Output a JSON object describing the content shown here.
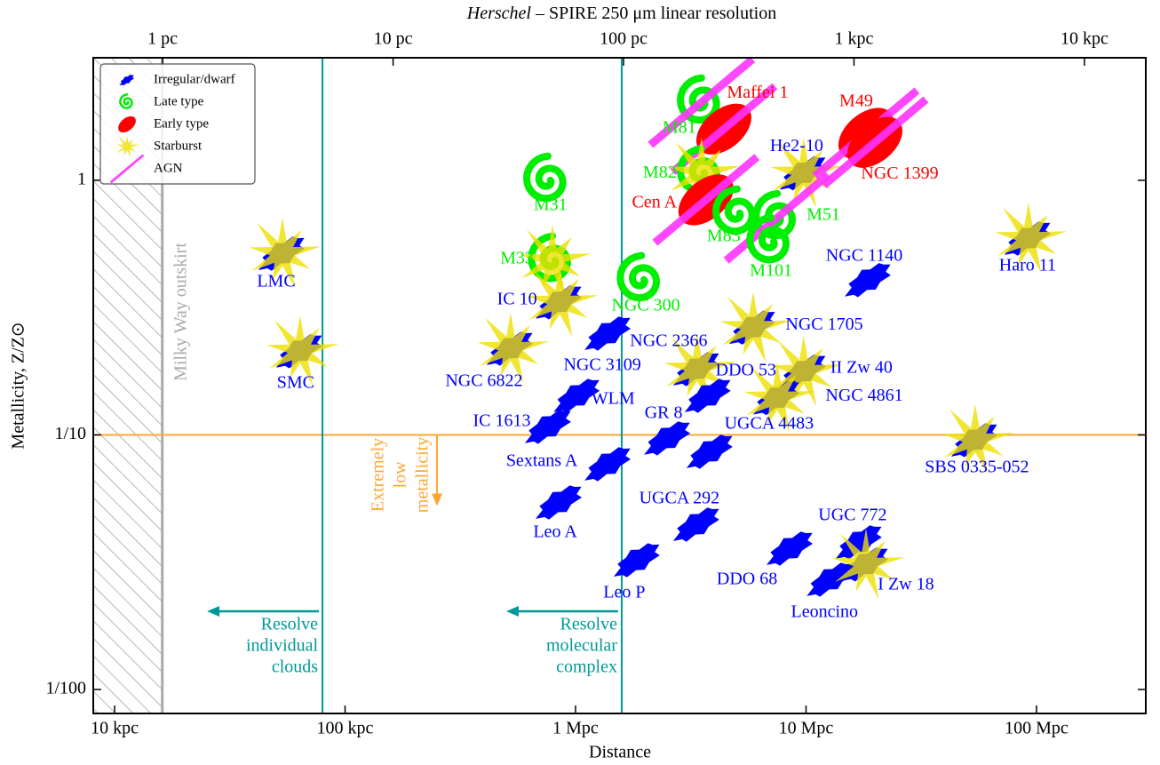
{
  "chart_data": {
    "type": "scatter",
    "x2label_emph": "Herschel",
    "x2label": " – SPIRE 250 μm linear resolution",
    "xlabel": "Distance",
    "ylabel": "Metallicity, Z/Z⊙",
    "log_x": true,
    "log_y": true,
    "xlim": [
      0.00808,
      298
    ],
    "xticks": [
      {
        "value": 0.01,
        "label": "10 kpc"
      },
      {
        "value": 0.1,
        "label": "100 kpc"
      },
      {
        "value": 1,
        "label": "1 Mpc"
      },
      {
        "value": 10,
        "label": "10 Mpc"
      },
      {
        "value": 100,
        "label": "100 Mpc"
      }
    ],
    "x2lim": [
      0.5,
      18460
    ],
    "x2ticks": [
      {
        "value": 1,
        "label": "1 pc"
      },
      {
        "value": 10,
        "label": "10 pc"
      },
      {
        "value": 100,
        "label": "100 pc"
      },
      {
        "value": 1000,
        "label": "1 kpc"
      },
      {
        "value": 10000,
        "label": "10 kpc"
      }
    ],
    "ylim": [
      0.00805,
      3.03
    ],
    "yticks": [
      {
        "value": 0.01,
        "label": "1/100"
      },
      {
        "value": 0.1,
        "label": "1/10"
      },
      1
    ],
    "legend_position": "upper left",
    "legend": [
      {
        "name": "Irregular/dwarf",
        "color": "#0000ff"
      },
      {
        "name": "Late type",
        "color": "#00ee00"
      },
      {
        "name": "Early type",
        "color": "#ff0000"
      },
      {
        "name": "Starburst",
        "color": "#eee000"
      },
      {
        "name": "AGN",
        "color": "#ff33ff"
      }
    ],
    "milky_way_edge": 0.0161,
    "milky_way_color": "#aaaaaa",
    "milky_way_text": "Milky Way outskirt",
    "low_metallicity": 0.1,
    "low_metallicity_color": "#ffa630",
    "low_metallicity_text": [
      "Extremely",
      "low",
      "metallicity"
    ],
    "resolution_color": "#009999",
    "resolution_limits": [
      {
        "x": 0.0798,
        "text": [
          "Resolve",
          "individual",
          "clouds"
        ]
      },
      {
        "x": 1.586,
        "text": [
          "Resolve",
          "molecular",
          "complex"
        ]
      }
    ],
    "points": [
      {
        "label": "LMC",
        "x": 0.0535,
        "y": 0.517,
        "types": [
          "Irregular/dwarf",
          "Starburst"
        ]
      },
      {
        "label": "SMC",
        "x": 0.0638,
        "y": 0.214,
        "types": [
          "Irregular/dwarf",
          "Starburst"
        ]
      },
      {
        "label": "M31",
        "x": 0.758,
        "y": 1.0,
        "types": [
          "Late type"
        ]
      },
      {
        "label": "M33",
        "x": 0.794,
        "y": 0.485,
        "types": [
          "Late type",
          "Starburst"
        ]
      },
      {
        "label": "IC 10",
        "x": 0.853,
        "y": 0.333,
        "types": [
          "Irregular/dwarf",
          "Starburst"
        ]
      },
      {
        "label": "NGC 6822",
        "x": 0.523,
        "y": 0.219,
        "types": [
          "Irregular/dwarf",
          "Starburst"
        ]
      },
      {
        "label": "NGC 300",
        "x": 1.93,
        "y": 0.407,
        "types": [
          "Late type"
        ]
      },
      {
        "label": "NGC 3109",
        "x": 1.39,
        "y": 0.251,
        "types": [
          "Irregular/dwarf"
        ]
      },
      {
        "label": "WLM",
        "x": 1.02,
        "y": 0.143,
        "types": [
          "Irregular/dwarf"
        ]
      },
      {
        "label": "IC 1613",
        "x": 0.766,
        "y": 0.108,
        "types": [
          "Irregular/dwarf"
        ]
      },
      {
        "label": "Sextans A",
        "x": 1.39,
        "y": 0.077,
        "types": [
          "Irregular/dwarf"
        ]
      },
      {
        "label": "Leo A",
        "x": 0.853,
        "y": 0.0545,
        "types": [
          "Irregular/dwarf"
        ]
      },
      {
        "label": "Leo P",
        "x": 1.86,
        "y": 0.0323,
        "types": [
          "Irregular/dwarf"
        ]
      },
      {
        "label": "GR 8",
        "x": 2.52,
        "y": 0.0973,
        "types": [
          "Irregular/dwarf"
        ]
      },
      {
        "label": "UGCA 292",
        "x": 3.37,
        "y": 0.0446,
        "types": [
          "Irregular/dwarf"
        ]
      },
      {
        "label": "NGC 2366",
        "x": 3.37,
        "y": 0.182,
        "types": [
          "Irregular/dwarf",
          "Starburst"
        ]
      },
      {
        "label": "DDO 53",
        "x": 3.78,
        "y": 0.143,
        "types": [
          "Irregular/dwarf"
        ]
      },
      {
        "label": "UGCA 4483",
        "x": 3.85,
        "y": 0.0862,
        "types": [
          "Irregular/dwarf"
        ]
      },
      {
        "label": "NGC 1705",
        "x": 5.9,
        "y": 0.265,
        "types": [
          "Irregular/dwarf",
          "Starburst"
        ]
      },
      {
        "label": "II Zw 40",
        "x": 9.77,
        "y": 0.178,
        "types": [
          "Irregular/dwarf",
          "Starburst"
        ]
      },
      {
        "label": "NGC 4861",
        "x": 7.5,
        "y": 0.14,
        "types": [
          "Irregular/dwarf",
          "Starburst"
        ]
      },
      {
        "label": "NGC 1140",
        "x": 18.7,
        "y": 0.407,
        "types": [
          "Irregular/dwarf"
        ]
      },
      {
        "label": "He2-10",
        "x": 9.77,
        "y": 1.07,
        "types": [
          "Irregular/dwarf",
          "Starburst"
        ]
      },
      {
        "label": "Haro 11",
        "x": 92.3,
        "y": 0.593,
        "types": [
          "Irregular/dwarf",
          "Starburst"
        ]
      },
      {
        "label": "SBS 0335-052",
        "x": 54.2,
        "y": 0.0957,
        "types": [
          "Irregular/dwarf",
          "Starburst"
        ]
      },
      {
        "label": "UGC 772",
        "x": 17.1,
        "y": 0.038,
        "types": [
          "Irregular/dwarf"
        ]
      },
      {
        "label": "DDO 68",
        "x": 8.57,
        "y": 0.0359,
        "types": [
          "Irregular/dwarf"
        ]
      },
      {
        "label": "Leoncino",
        "x": 12.8,
        "y": 0.0271,
        "types": [
          "Irregular/dwarf"
        ]
      },
      {
        "label": "I Zw 18",
        "x": 18.2,
        "y": 0.0311,
        "types": [
          "Irregular/dwarf",
          "Starburst"
        ]
      },
      {
        "label": "M81",
        "x": 3.52,
        "y": 2.03,
        "types": [
          "Late type",
          "AGN"
        ]
      },
      {
        "label": "Maffei 1",
        "x": 4.4,
        "y": 1.59,
        "types": [
          "Early type",
          "AGN"
        ]
      },
      {
        "label": "M82",
        "x": 3.52,
        "y": 1.07,
        "types": [
          "Late type",
          "Starburst"
        ]
      },
      {
        "label": "Cen A",
        "x": 3.68,
        "y": 0.838,
        "types": [
          "Early type",
          "AGN"
        ]
      },
      {
        "label": "M83",
        "x": 5.02,
        "y": 0.743,
        "types": [
          "Late type"
        ]
      },
      {
        "label": "M51",
        "x": 7.5,
        "y": 0.713,
        "types": [
          "Late type",
          "AGN"
        ]
      },
      {
        "label": "M101",
        "x": 7.05,
        "y": 0.574,
        "types": [
          "Late type"
        ]
      },
      {
        "label": "M49",
        "x": 18.2,
        "y": 1.53,
        "types": [
          "Early type",
          "AGN"
        ]
      },
      {
        "label": "NGC 1399",
        "x": 19.9,
        "y": 1.41,
        "types": [
          "Early type",
          "AGN"
        ]
      }
    ]
  }
}
